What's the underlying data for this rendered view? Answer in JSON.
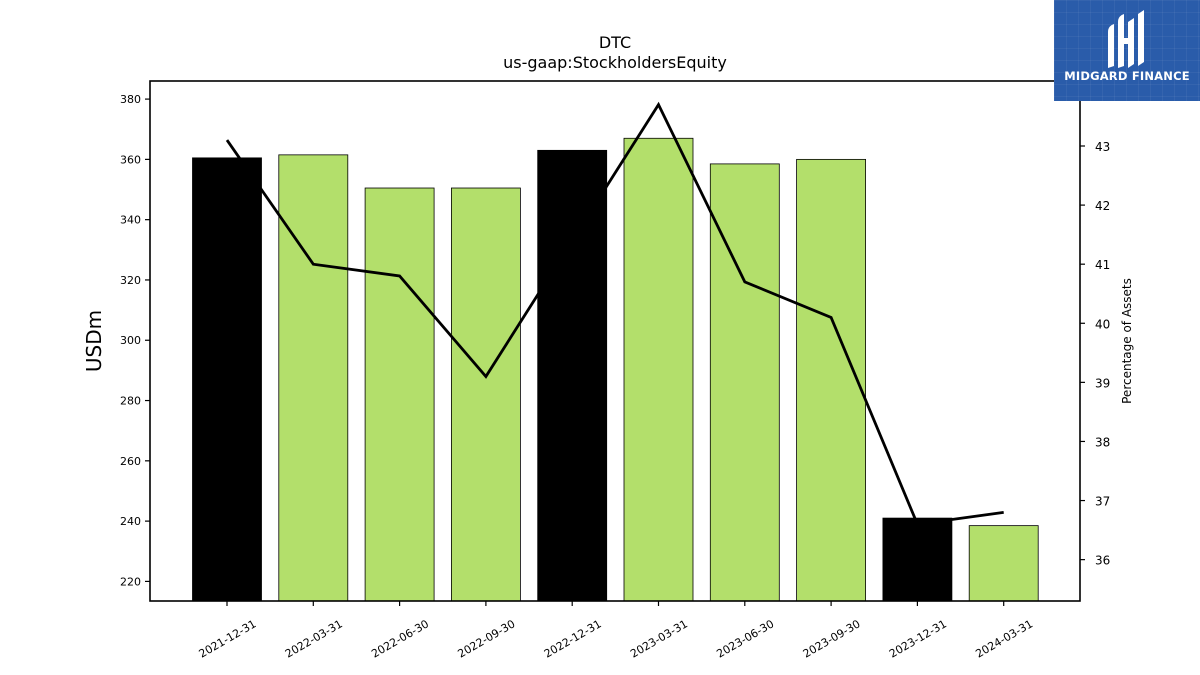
{
  "chart_data": {
    "type": "bar",
    "title": "DTC",
    "subtitle": "us-gaap:StockholdersEquity",
    "ylabel": "USDm",
    "y2label": "Percentage of Assets",
    "categories": [
      "2021-12-31",
      "2022-03-31",
      "2022-06-30",
      "2022-09-30",
      "2022-12-31",
      "2023-03-31",
      "2023-06-30",
      "2023-09-30",
      "2023-12-31",
      "2024-03-31"
    ],
    "series": [
      {
        "type": "bar",
        "axis": "left",
        "values": [
          360.5,
          361.5,
          350.5,
          350.5,
          363.0,
          367.0,
          358.5,
          360.0,
          241.0,
          238.5
        ],
        "colors": [
          "#000000",
          "#b3df6b",
          "#b3df6b",
          "#b3df6b",
          "#000000",
          "#b3df6b",
          "#b3df6b",
          "#b3df6b",
          "#000000",
          "#b3df6b"
        ]
      },
      {
        "type": "line",
        "axis": "right",
        "color": "#000000",
        "values": [
          43.1,
          41.0,
          40.8,
          39.1,
          41.4,
          43.7,
          40.7,
          40.1,
          36.6,
          36.8
        ]
      }
    ],
    "ylim": [
      213.5,
      386
    ],
    "yticks": [
      220,
      240,
      260,
      280,
      300,
      320,
      340,
      360,
      380
    ],
    "y2lim": [
      35.3,
      44.1
    ],
    "y2ticks": [
      36,
      37,
      38,
      39,
      40,
      41,
      42,
      43
    ],
    "grid": false
  },
  "logo": {
    "text": "MIDGARD FINANCE",
    "background": "#2a5caa"
  }
}
